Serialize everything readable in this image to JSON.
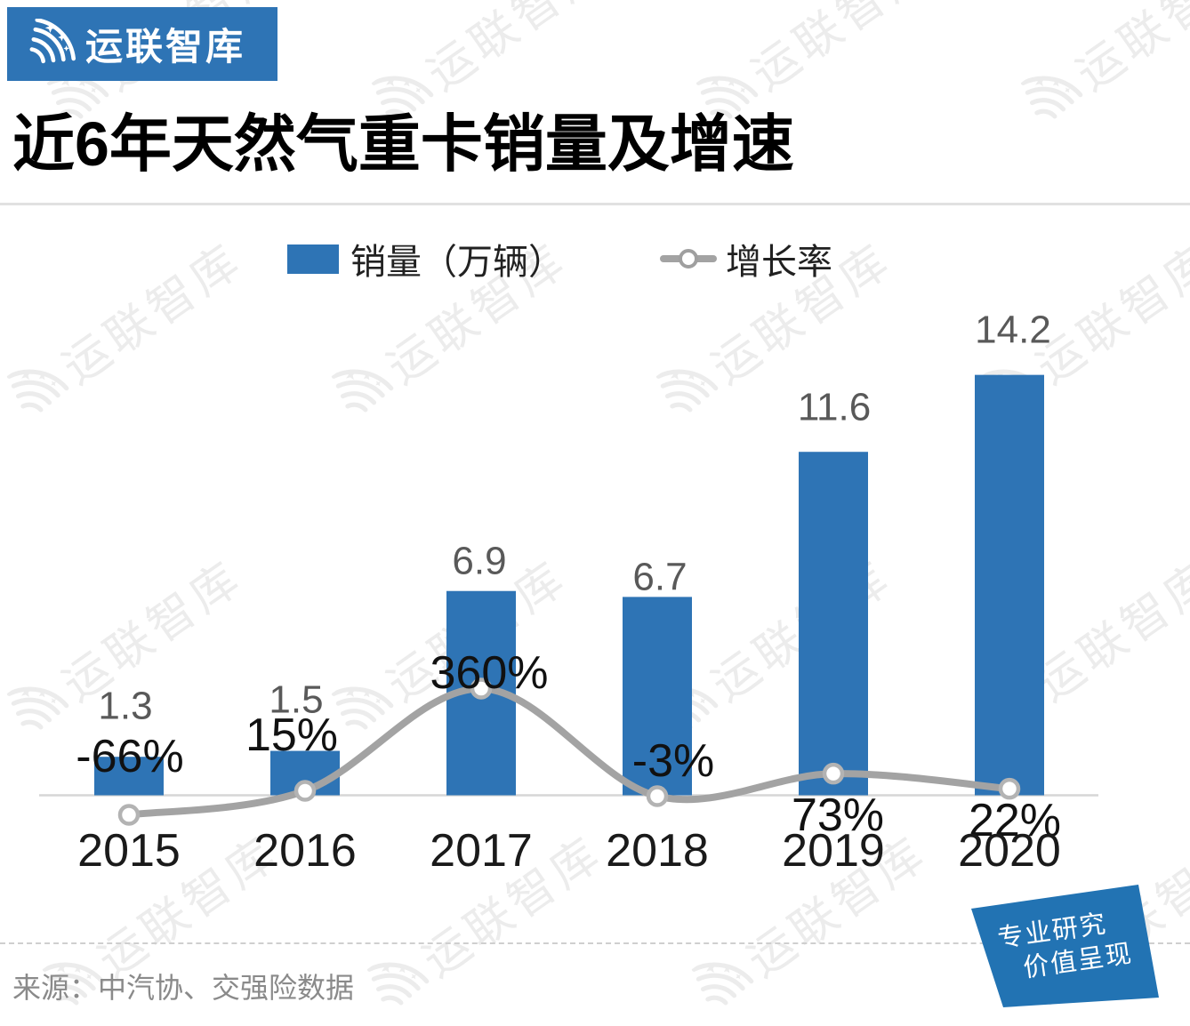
{
  "logo": {
    "text": "运联智库",
    "bg_color": "#2e74b5"
  },
  "header": {
    "title": "近6年天然气重卡销量及增速"
  },
  "watermark": {
    "text": "运联智库"
  },
  "footer": {
    "source": "来源：中汽协、交强险数据"
  },
  "stamp": {
    "line1": "专业研究",
    "line2": "价值呈现",
    "color": "#2273b3"
  },
  "chart_data": {
    "type": "bar",
    "subtype": "bar+line combo",
    "title": "近6年天然气重卡销量及增速",
    "categories": [
      "2015",
      "2016",
      "2017",
      "2018",
      "2019",
      "2020"
    ],
    "series": [
      {
        "name": "销量（万辆）",
        "type": "bar",
        "color": "#2e74b5",
        "values": [
          1.3,
          1.5,
          6.9,
          6.7,
          11.6,
          14.2
        ],
        "labels": [
          "1.3",
          "1.5",
          "6.9",
          "6.7",
          "11.6",
          "14.2"
        ]
      },
      {
        "name": "增长率",
        "type": "line",
        "color": "#a3a3a3",
        "unit": "%",
        "values": [
          -66,
          15,
          360,
          -3,
          73,
          22
        ],
        "labels": [
          "-66%",
          "15%",
          "360%",
          "-3%",
          "73%",
          "22%"
        ]
      }
    ],
    "legend_position": "top",
    "grid": false,
    "value_axis_hidden": true,
    "bar_value_range": [
      0,
      14.2
    ],
    "colors": {
      "value_label": "#595959",
      "pct_label": "#111111",
      "year_label": "#1a1a1a",
      "axis": "#d6d6d6",
      "marker_fill": "#ffffff",
      "marker_stroke": "#b3b3b3"
    }
  }
}
